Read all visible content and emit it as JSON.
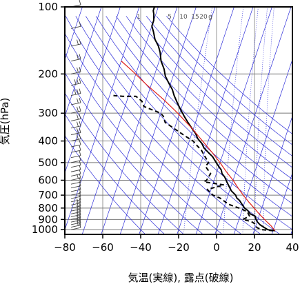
{
  "chart_data": {
    "type": "line",
    "subtype": "skew-t log-p diagram",
    "xlabel": "気温(実線), 露点(破線)",
    "ylabel": "気圧(hPa)",
    "xlim": [
      -80,
      40
    ],
    "ylim": [
      1050,
      100
    ],
    "yscale": "log",
    "x_ticks": [
      -80,
      -60,
      -40,
      -20,
      0,
      20,
      40
    ],
    "x_tick_labels": [
      "−80",
      "−60",
      "−40",
      "−20",
      "0",
      "20",
      "40"
    ],
    "y_ticks": [
      1000,
      900,
      800,
      700,
      600,
      500,
      400,
      300,
      200,
      100
    ],
    "y_tick_labels": [
      "1000",
      "900",
      "800",
      "700",
      "600",
      "500",
      "400",
      "300",
      "200",
      "100"
    ],
    "grid": true,
    "mixing_ratio_labels": [
      "1",
      "5",
      "10",
      "15",
      "20",
      "g"
    ],
    "colors": {
      "temperature": "#000000",
      "dewpoint": "#000000",
      "parcel": "#e0201a",
      "adiabats": "#2b2bd8",
      "grid": "#7a7a7a",
      "wind_barbs": "#444444"
    },
    "series": [
      {
        "style": "solid",
        "color": "#000000",
        "points": [
          [
            31,
            1011
          ],
          [
            27,
            1000
          ],
          [
            24,
            970
          ],
          [
            22,
            950
          ],
          [
            20,
            920
          ],
          [
            19,
            900
          ],
          [
            18,
            870
          ],
          [
            15,
            850
          ],
          [
            13,
            820
          ],
          [
            11,
            800
          ],
          [
            9,
            770
          ],
          [
            7,
            740
          ],
          [
            5,
            720
          ],
          [
            4,
            700
          ],
          [
            1,
            670
          ],
          [
            -1,
            640
          ],
          [
            -3,
            610
          ],
          [
            -5,
            580
          ],
          [
            -7,
            560
          ],
          [
            -8,
            540
          ],
          [
            -10,
            520
          ],
          [
            -12,
            500
          ],
          [
            -15,
            470
          ],
          [
            -18,
            450
          ],
          [
            -21,
            430
          ],
          [
            -23,
            410
          ],
          [
            -26,
            390
          ],
          [
            -28,
            370
          ],
          [
            -31,
            350
          ],
          [
            -34,
            330
          ],
          [
            -37,
            310
          ],
          [
            -40,
            290
          ],
          [
            -43,
            270
          ],
          [
            -46,
            250
          ],
          [
            -48,
            235
          ],
          [
            -51,
            220
          ],
          [
            -54,
            205
          ],
          [
            -56,
            190
          ],
          [
            -59,
            175
          ],
          [
            -61,
            160
          ],
          [
            -63,
            150
          ],
          [
            -66,
            140
          ],
          [
            -68,
            130
          ],
          [
            -70,
            122
          ],
          [
            -70,
            115
          ],
          [
            -71,
            108
          ],
          [
            -72,
            104
          ],
          [
            -72,
            100
          ]
        ]
      },
      {
        "style": "dashed",
        "color": "#000000",
        "points": [
          [
            30,
            1011
          ],
          [
            24,
            1000
          ],
          [
            21,
            980
          ],
          [
            20,
            960
          ],
          [
            19,
            940
          ],
          [
            17,
            920
          ],
          [
            12,
            900
          ],
          [
            15,
            870
          ],
          [
            13,
            830
          ],
          [
            8,
            800
          ],
          [
            2,
            770
          ],
          [
            -4,
            720
          ],
          [
            -8,
            700
          ],
          [
            -12,
            660
          ],
          [
            -4,
            630
          ],
          [
            -15,
            610
          ],
          [
            -14,
            600
          ],
          [
            -13,
            560
          ],
          [
            -17,
            520
          ],
          [
            -16,
            500
          ],
          [
            -19,
            470
          ],
          [
            -22,
            440
          ],
          [
            -25,
            420
          ],
          [
            -28,
            400
          ],
          [
            -33,
            380
          ],
          [
            -38,
            360
          ],
          [
            -46,
            330
          ],
          [
            -48,
            310
          ],
          [
            -50,
            300
          ],
          [
            -55,
            290
          ],
          [
            -60,
            280
          ],
          [
            -62,
            265
          ],
          [
            -66,
            252
          ],
          [
            -73,
            252
          ],
          [
            -78,
            250
          ]
        ]
      },
      {
        "style": "solid",
        "color": "#e0201a",
        "points": [
          [
            31,
            1011
          ],
          [
            28,
            960
          ],
          [
            25,
            920
          ],
          [
            22,
            880
          ],
          [
            19,
            840
          ],
          [
            16,
            800
          ],
          [
            12,
            750
          ],
          [
            8,
            700
          ],
          [
            4,
            650
          ],
          [
            0,
            600
          ],
          [
            -5,
            550
          ],
          [
            -10,
            500
          ],
          [
            -16,
            450
          ],
          [
            -23,
            400
          ],
          [
            -31,
            350
          ],
          [
            -41,
            300
          ],
          [
            -51,
            260
          ],
          [
            -62,
            225
          ],
          [
            -72,
            195
          ],
          [
            -80,
            175
          ]
        ]
      }
    ],
    "wind_barbs": [
      [
        1000,
        7
      ],
      [
        975,
        10
      ],
      [
        950,
        12
      ],
      [
        925,
        12
      ],
      [
        900,
        10
      ],
      [
        875,
        8
      ],
      [
        850,
        10
      ],
      [
        825,
        12
      ],
      [
        800,
        10
      ],
      [
        775,
        8
      ],
      [
        750,
        6
      ],
      [
        725,
        6
      ],
      [
        700,
        6
      ],
      [
        675,
        6
      ],
      [
        650,
        5
      ],
      [
        625,
        6
      ],
      [
        600,
        8
      ],
      [
        575,
        6
      ],
      [
        550,
        5
      ],
      [
        525,
        6
      ],
      [
        500,
        5
      ],
      [
        475,
        7
      ],
      [
        450,
        5
      ],
      [
        425,
        6
      ],
      [
        400,
        8
      ],
      [
        375,
        10
      ],
      [
        350,
        10
      ],
      [
        325,
        12
      ],
      [
        300,
        10
      ],
      [
        275,
        12
      ],
      [
        250,
        15
      ],
      [
        225,
        15
      ],
      [
        200,
        12
      ],
      [
        175,
        10
      ],
      [
        150,
        10
      ],
      [
        125,
        6
      ],
      [
        100,
        5
      ]
    ]
  }
}
